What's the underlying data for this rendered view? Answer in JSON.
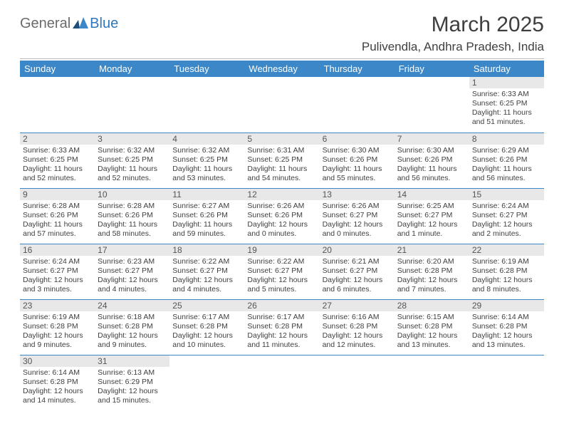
{
  "logo": {
    "text1": "General",
    "text2": "Blue"
  },
  "title": "March 2025",
  "location": "Pulivendla, Andhra Pradesh, India",
  "colors": {
    "header_bg": "#3b87c8",
    "header_fg": "#ffffff",
    "daynum_bg": "#e8e8e8",
    "row_border": "#3b87c8",
    "text": "#3f3f3f",
    "logo_gray": "#6b6b6b",
    "logo_blue": "#2f77bb"
  },
  "weekdays": [
    "Sunday",
    "Monday",
    "Tuesday",
    "Wednesday",
    "Thursday",
    "Friday",
    "Saturday"
  ],
  "weeks": [
    [
      null,
      null,
      null,
      null,
      null,
      null,
      {
        "n": "1",
        "sr": "Sunrise: 6:33 AM",
        "ss": "Sunset: 6:25 PM",
        "dl": "Daylight: 11 hours and 51 minutes."
      }
    ],
    [
      {
        "n": "2",
        "sr": "Sunrise: 6:33 AM",
        "ss": "Sunset: 6:25 PM",
        "dl": "Daylight: 11 hours and 52 minutes."
      },
      {
        "n": "3",
        "sr": "Sunrise: 6:32 AM",
        "ss": "Sunset: 6:25 PM",
        "dl": "Daylight: 11 hours and 52 minutes."
      },
      {
        "n": "4",
        "sr": "Sunrise: 6:32 AM",
        "ss": "Sunset: 6:25 PM",
        "dl": "Daylight: 11 hours and 53 minutes."
      },
      {
        "n": "5",
        "sr": "Sunrise: 6:31 AM",
        "ss": "Sunset: 6:25 PM",
        "dl": "Daylight: 11 hours and 54 minutes."
      },
      {
        "n": "6",
        "sr": "Sunrise: 6:30 AM",
        "ss": "Sunset: 6:26 PM",
        "dl": "Daylight: 11 hours and 55 minutes."
      },
      {
        "n": "7",
        "sr": "Sunrise: 6:30 AM",
        "ss": "Sunset: 6:26 PM",
        "dl": "Daylight: 11 hours and 56 minutes."
      },
      {
        "n": "8",
        "sr": "Sunrise: 6:29 AM",
        "ss": "Sunset: 6:26 PM",
        "dl": "Daylight: 11 hours and 56 minutes."
      }
    ],
    [
      {
        "n": "9",
        "sr": "Sunrise: 6:28 AM",
        "ss": "Sunset: 6:26 PM",
        "dl": "Daylight: 11 hours and 57 minutes."
      },
      {
        "n": "10",
        "sr": "Sunrise: 6:28 AM",
        "ss": "Sunset: 6:26 PM",
        "dl": "Daylight: 11 hours and 58 minutes."
      },
      {
        "n": "11",
        "sr": "Sunrise: 6:27 AM",
        "ss": "Sunset: 6:26 PM",
        "dl": "Daylight: 11 hours and 59 minutes."
      },
      {
        "n": "12",
        "sr": "Sunrise: 6:26 AM",
        "ss": "Sunset: 6:26 PM",
        "dl": "Daylight: 12 hours and 0 minutes."
      },
      {
        "n": "13",
        "sr": "Sunrise: 6:26 AM",
        "ss": "Sunset: 6:27 PM",
        "dl": "Daylight: 12 hours and 0 minutes."
      },
      {
        "n": "14",
        "sr": "Sunrise: 6:25 AM",
        "ss": "Sunset: 6:27 PM",
        "dl": "Daylight: 12 hours and 1 minute."
      },
      {
        "n": "15",
        "sr": "Sunrise: 6:24 AM",
        "ss": "Sunset: 6:27 PM",
        "dl": "Daylight: 12 hours and 2 minutes."
      }
    ],
    [
      {
        "n": "16",
        "sr": "Sunrise: 6:24 AM",
        "ss": "Sunset: 6:27 PM",
        "dl": "Daylight: 12 hours and 3 minutes."
      },
      {
        "n": "17",
        "sr": "Sunrise: 6:23 AM",
        "ss": "Sunset: 6:27 PM",
        "dl": "Daylight: 12 hours and 4 minutes."
      },
      {
        "n": "18",
        "sr": "Sunrise: 6:22 AM",
        "ss": "Sunset: 6:27 PM",
        "dl": "Daylight: 12 hours and 4 minutes."
      },
      {
        "n": "19",
        "sr": "Sunrise: 6:22 AM",
        "ss": "Sunset: 6:27 PM",
        "dl": "Daylight: 12 hours and 5 minutes."
      },
      {
        "n": "20",
        "sr": "Sunrise: 6:21 AM",
        "ss": "Sunset: 6:27 PM",
        "dl": "Daylight: 12 hours and 6 minutes."
      },
      {
        "n": "21",
        "sr": "Sunrise: 6:20 AM",
        "ss": "Sunset: 6:28 PM",
        "dl": "Daylight: 12 hours and 7 minutes."
      },
      {
        "n": "22",
        "sr": "Sunrise: 6:19 AM",
        "ss": "Sunset: 6:28 PM",
        "dl": "Daylight: 12 hours and 8 minutes."
      }
    ],
    [
      {
        "n": "23",
        "sr": "Sunrise: 6:19 AM",
        "ss": "Sunset: 6:28 PM",
        "dl": "Daylight: 12 hours and 9 minutes."
      },
      {
        "n": "24",
        "sr": "Sunrise: 6:18 AM",
        "ss": "Sunset: 6:28 PM",
        "dl": "Daylight: 12 hours and 9 minutes."
      },
      {
        "n": "25",
        "sr": "Sunrise: 6:17 AM",
        "ss": "Sunset: 6:28 PM",
        "dl": "Daylight: 12 hours and 10 minutes."
      },
      {
        "n": "26",
        "sr": "Sunrise: 6:17 AM",
        "ss": "Sunset: 6:28 PM",
        "dl": "Daylight: 12 hours and 11 minutes."
      },
      {
        "n": "27",
        "sr": "Sunrise: 6:16 AM",
        "ss": "Sunset: 6:28 PM",
        "dl": "Daylight: 12 hours and 12 minutes."
      },
      {
        "n": "28",
        "sr": "Sunrise: 6:15 AM",
        "ss": "Sunset: 6:28 PM",
        "dl": "Daylight: 12 hours and 13 minutes."
      },
      {
        "n": "29",
        "sr": "Sunrise: 6:14 AM",
        "ss": "Sunset: 6:28 PM",
        "dl": "Daylight: 12 hours and 13 minutes."
      }
    ],
    [
      {
        "n": "30",
        "sr": "Sunrise: 6:14 AM",
        "ss": "Sunset: 6:28 PM",
        "dl": "Daylight: 12 hours and 14 minutes."
      },
      {
        "n": "31",
        "sr": "Sunrise: 6:13 AM",
        "ss": "Sunset: 6:29 PM",
        "dl": "Daylight: 12 hours and 15 minutes."
      },
      null,
      null,
      null,
      null,
      null
    ]
  ]
}
